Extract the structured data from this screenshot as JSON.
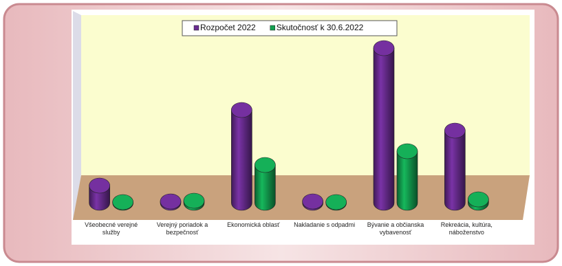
{
  "chart_data": {
    "type": "bar3d",
    "categories": [
      "Všeobecné verejné služby",
      "Verejný poriadok a bezpečnosť",
      "Ekonomická oblasť",
      "Nakladanie s odpadmi",
      "Bývanie a občianska vybavenosť",
      "Rekreácia, kultúra, náboženstvo"
    ],
    "series": [
      {
        "name": "Rozpočet 2022",
        "color": "#6a2c91",
        "values": [
          25,
          2,
          135,
          2,
          225,
          105
        ]
      },
      {
        "name": "Skutočnosť k 30.6.2022",
        "color": "#13a050",
        "values": [
          1,
          3,
          55,
          1,
          75,
          5
        ]
      }
    ]
  }
}
